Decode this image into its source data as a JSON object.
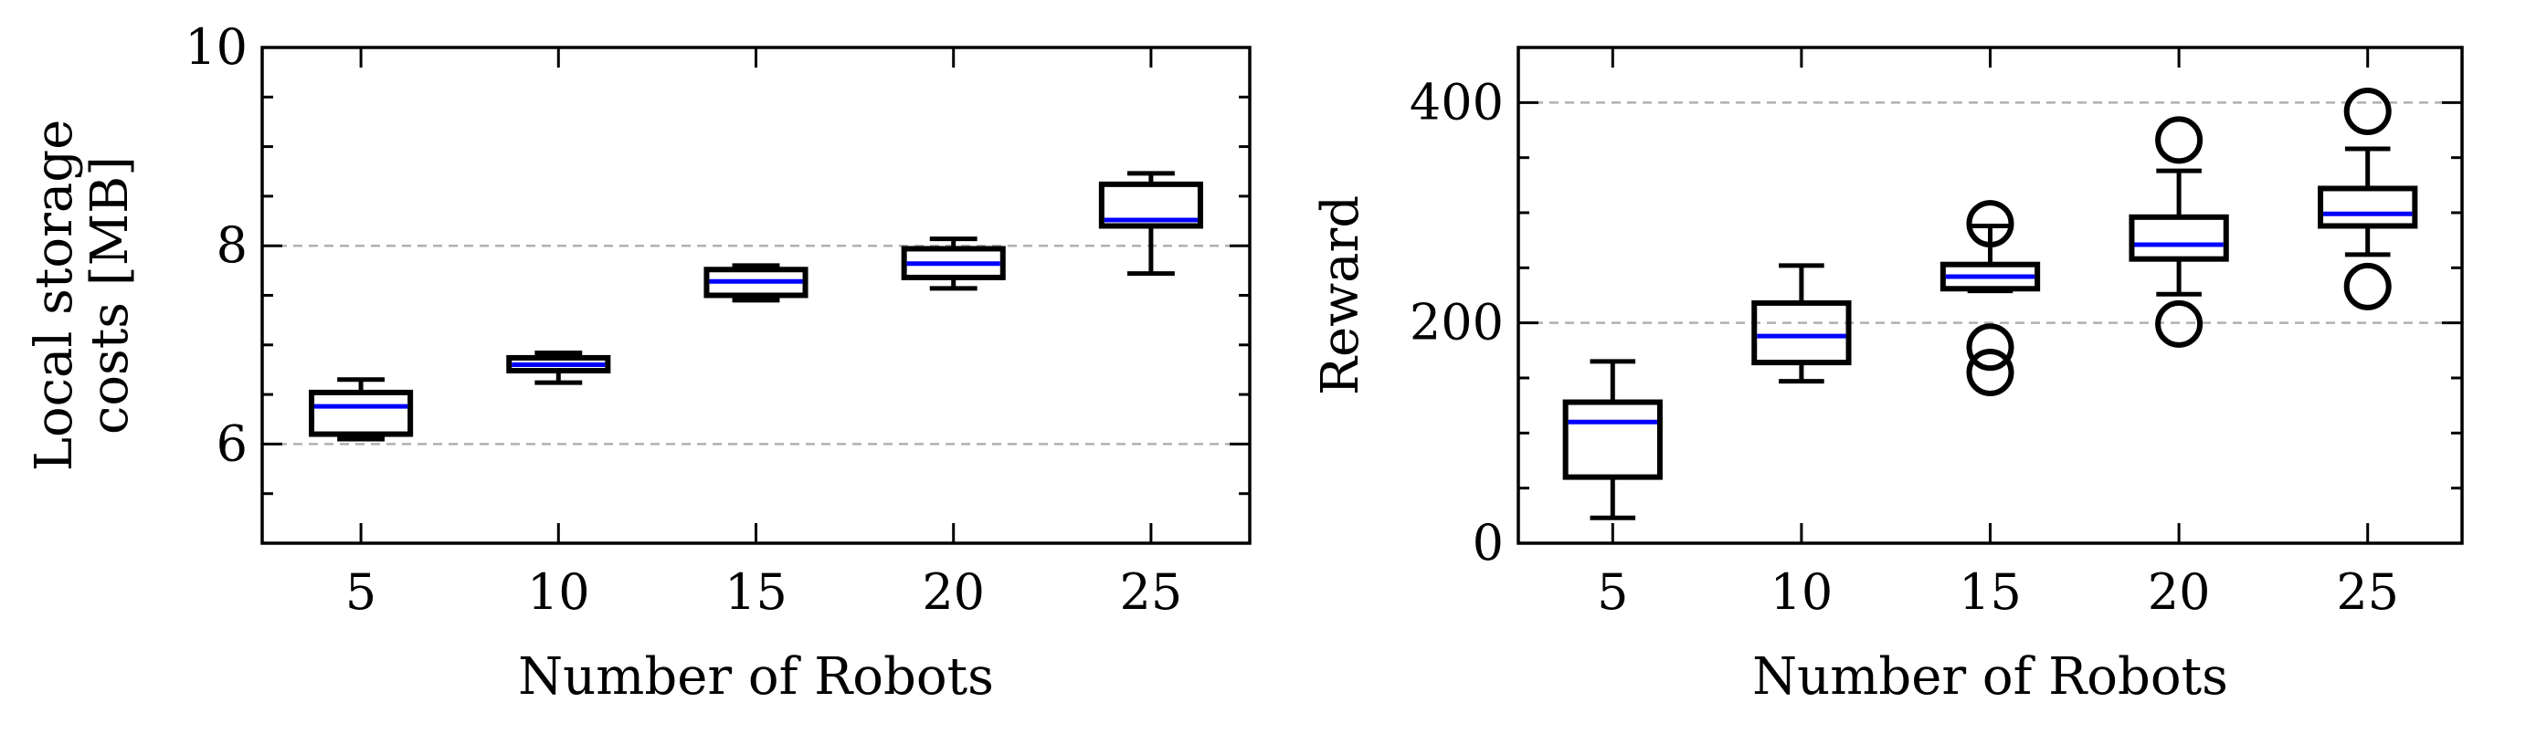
{
  "colors": {
    "box": "#000000",
    "median": "#0000ff",
    "grid": "#b0b0b0",
    "axes": "#000000",
    "background": "#ffffff"
  },
  "chart_data": [
    {
      "type": "box",
      "title": "",
      "xlabel": "Number of Robots",
      "ylabel_lines": [
        "Local storage",
        "costs [MB]"
      ],
      "categories": [
        "5",
        "10",
        "15",
        "20",
        "25"
      ],
      "ylim": [
        5,
        10
      ],
      "yticks": [
        6,
        8,
        10
      ],
      "yticklabels": [
        "6",
        "8",
        "10"
      ],
      "grid": "horizontal-dashed",
      "legend": "none",
      "boxes": [
        {
          "category": "5",
          "whisker_low": 6.05,
          "q1": 6.1,
          "median": 6.38,
          "q3": 6.52,
          "whisker_high": 6.65,
          "outliers": []
        },
        {
          "category": "10",
          "whisker_low": 6.62,
          "q1": 6.74,
          "median": 6.8,
          "q3": 6.87,
          "whisker_high": 6.92,
          "outliers": []
        },
        {
          "category": "15",
          "whisker_low": 7.45,
          "q1": 7.5,
          "median": 7.64,
          "q3": 7.76,
          "whisker_high": 7.8,
          "outliers": []
        },
        {
          "category": "20",
          "whisker_low": 7.57,
          "q1": 7.68,
          "median": 7.82,
          "q3": 7.97,
          "whisker_high": 8.07,
          "outliers": []
        },
        {
          "category": "25",
          "whisker_low": 7.72,
          "q1": 8.2,
          "median": 8.26,
          "q3": 8.62,
          "whisker_high": 8.73,
          "outliers": []
        }
      ]
    },
    {
      "type": "box",
      "title": "",
      "xlabel": "Number of Robots",
      "ylabel_lines": [
        "Reward"
      ],
      "categories": [
        "5",
        "10",
        "15",
        "20",
        "25"
      ],
      "ylim": [
        0,
        450
      ],
      "yticks": [
        0,
        200,
        400
      ],
      "yticklabels": [
        "0",
        "200",
        "400"
      ],
      "grid": "horizontal-dashed",
      "legend": "none",
      "boxes": [
        {
          "category": "5",
          "whisker_low": 23,
          "q1": 60,
          "median": 110,
          "q3": 128,
          "whisker_high": 165,
          "outliers": []
        },
        {
          "category": "10",
          "whisker_low": 147,
          "q1": 164,
          "median": 188,
          "q3": 218,
          "whisker_high": 252,
          "outliers": []
        },
        {
          "category": "15",
          "whisker_low": 229,
          "q1": 231,
          "median": 242,
          "q3": 253,
          "whisker_high": 288,
          "outliers": [
            290,
            178,
            155
          ]
        },
        {
          "category": "20",
          "whisker_low": 226,
          "q1": 258,
          "median": 271,
          "q3": 296,
          "whisker_high": 338,
          "outliers": [
            366,
            199
          ]
        },
        {
          "category": "25",
          "whisker_low": 262,
          "q1": 288,
          "median": 299,
          "q3": 322,
          "whisker_high": 358,
          "outliers": [
            392,
            233
          ]
        }
      ]
    }
  ]
}
